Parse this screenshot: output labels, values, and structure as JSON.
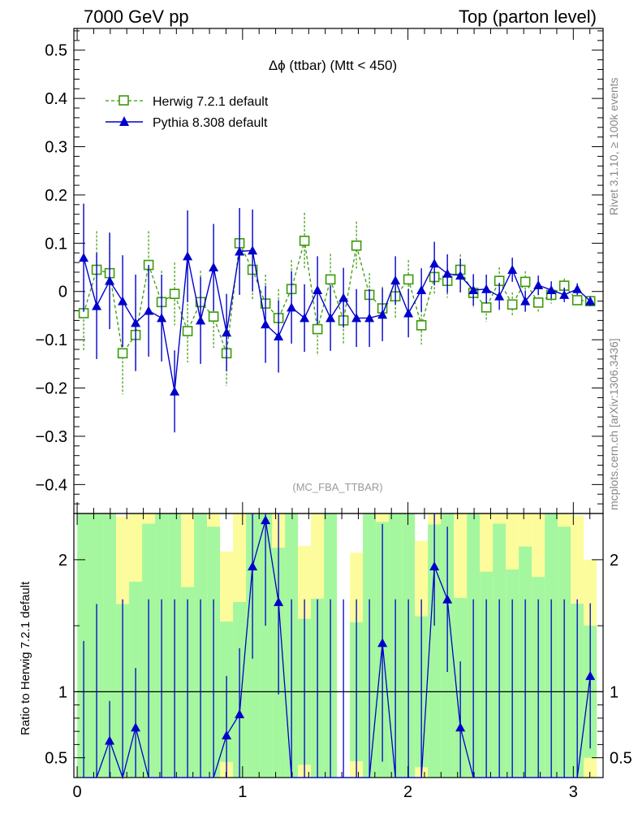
{
  "header": {
    "left": "7000 GeV pp",
    "right": "Top (parton level)"
  },
  "side_labels": {
    "rivet": "Rivet 3.1.10, ≥ 100k events",
    "mcplots": "mcplots.cern.ch [arXiv:1306.3436]"
  },
  "chart_data": {
    "type": "line",
    "title": "Δϕ (ttbar) (Mtt < 450)",
    "analysis_label": "(MC_FBA_TTBAR)",
    "x": [
      0.0393,
      0.1178,
      0.1963,
      0.2749,
      0.3534,
      0.432,
      0.5105,
      0.589,
      0.6676,
      0.7461,
      0.8247,
      0.9032,
      0.9817,
      1.0603,
      1.1388,
      1.2174,
      1.2959,
      1.3744,
      1.453,
      1.5315,
      1.6101,
      1.6886,
      1.7671,
      1.8457,
      1.9242,
      2.0028,
      2.0813,
      2.1598,
      2.2384,
      2.3169,
      2.3955,
      2.474,
      2.5525,
      2.6311,
      2.7096,
      2.7882,
      2.8667,
      2.9452,
      3.0238,
      3.1023
    ],
    "xlim": [
      -0.02,
      3.18
    ],
    "x_ticks": [
      "0",
      "1",
      "2",
      "3"
    ],
    "series": [
      {
        "name": "Herwig 7.2.1 default",
        "color": "#3a9a0a",
        "marker": "open-square",
        "line": "dashed",
        "values": [
          -0.045,
          0.045,
          0.038,
          -0.128,
          -0.09,
          0.055,
          -0.022,
          -0.005,
          -0.082,
          -0.022,
          -0.052,
          -0.128,
          0.1,
          0.045,
          -0.025,
          -0.055,
          0.005,
          0.105,
          -0.078,
          0.025,
          -0.06,
          0.095,
          -0.007,
          -0.035,
          -0.01,
          0.025,
          -0.07,
          0.03,
          0.022,
          0.045,
          -0.003,
          -0.033,
          0.022,
          -0.027,
          0.02,
          -0.023,
          -0.007,
          0.012,
          -0.018,
          -0.02
        ],
        "errors": [
          0.08,
          0.08,
          0.078,
          0.085,
          0.075,
          0.07,
          0.065,
          0.065,
          0.065,
          0.065,
          0.065,
          0.068,
          0.068,
          0.062,
          0.06,
          0.06,
          0.06,
          0.058,
          0.055,
          0.053,
          0.05,
          0.05,
          0.045,
          0.045,
          0.045,
          0.04,
          0.04,
          0.038,
          0.035,
          0.032,
          0.03,
          0.03,
          0.028,
          0.025,
          0.022,
          0.02,
          0.018,
          0.015,
          0.012,
          0.01
        ]
      },
      {
        "name": "Pythia 8.308 default",
        "color": "#0000cc",
        "marker": "filled-triangle",
        "line": "solid",
        "values": [
          0.07,
          -0.03,
          0.022,
          -0.02,
          -0.065,
          -0.04,
          -0.055,
          -0.207,
          0.073,
          -0.06,
          0.05,
          -0.085,
          0.083,
          0.085,
          -0.068,
          -0.093,
          -0.033,
          -0.055,
          0.003,
          -0.055,
          -0.013,
          -0.055,
          -0.055,
          -0.048,
          0.023,
          -0.045,
          0.003,
          0.058,
          0.037,
          0.033,
          0.003,
          0.005,
          -0.01,
          0.045,
          -0.02,
          0.013,
          0.003,
          -0.007,
          0.005,
          -0.02
        ],
        "errors": [
          0.112,
          0.11,
          0.1,
          0.095,
          0.1,
          0.095,
          0.09,
          0.085,
          0.095,
          0.09,
          0.09,
          0.08,
          0.09,
          0.085,
          0.08,
          0.075,
          0.075,
          0.07,
          0.07,
          0.068,
          0.062,
          0.06,
          0.06,
          0.055,
          0.05,
          0.05,
          0.045,
          0.045,
          0.04,
          0.035,
          0.033,
          0.03,
          0.028,
          0.025,
          0.022,
          0.02,
          0.018,
          0.015,
          0.012,
          0.01
        ]
      }
    ],
    "top_panel": {
      "ylim": [
        -0.46,
        0.545
      ],
      "y_ticks": [
        "0.5",
        "0.4",
        "0.3",
        "0.2",
        "0.1",
        "0",
        "−0.1",
        "−0.2",
        "−0.3",
        "−0.4"
      ],
      "legend_position": "top-left"
    },
    "ratio_panel": {
      "ylabel": "Ratio to Herwig 7.2.1 default",
      "ylim": [
        0.35,
        2.35
      ],
      "y_ticks": [
        "2",
        "1",
        "0.5"
      ],
      "reference_line": 1,
      "ratio_values": [
        null,
        null,
        0.63,
        null,
        0.73,
        null,
        null,
        null,
        null,
        null,
        null,
        0.67,
        0.83,
        1.95,
        2.3,
        1.68,
        null,
        null,
        null,
        null,
        null,
        null,
        null,
        1.37,
        null,
        null,
        null,
        1.95,
        1.7,
        0.73,
        null,
        null,
        null,
        null,
        null,
        null,
        null,
        null,
        null,
        1.12
      ],
      "ratio_errors": [
        0.55,
        0.95,
        0.3,
        1.0,
        0.45,
        1.0,
        1.0,
        1.0,
        1.0,
        1.0,
        1.0,
        0.45,
        0.5,
        0.7,
        0.8,
        0.7,
        1.0,
        1.0,
        1.0,
        1.0,
        1.0,
        1.0,
        1.0,
        0.9,
        1.0,
        1.0,
        1.0,
        0.45,
        0.55,
        0.5,
        1.0,
        1.0,
        1.0,
        1.0,
        1.0,
        1.0,
        1.0,
        1.0,
        1.0,
        0.55
      ]
    }
  },
  "colors": {
    "band_inner": "#a4f79e",
    "band_outer": "#fcfc9c",
    "herwig": "#3a9a0a",
    "pythia": "#0000cc"
  }
}
